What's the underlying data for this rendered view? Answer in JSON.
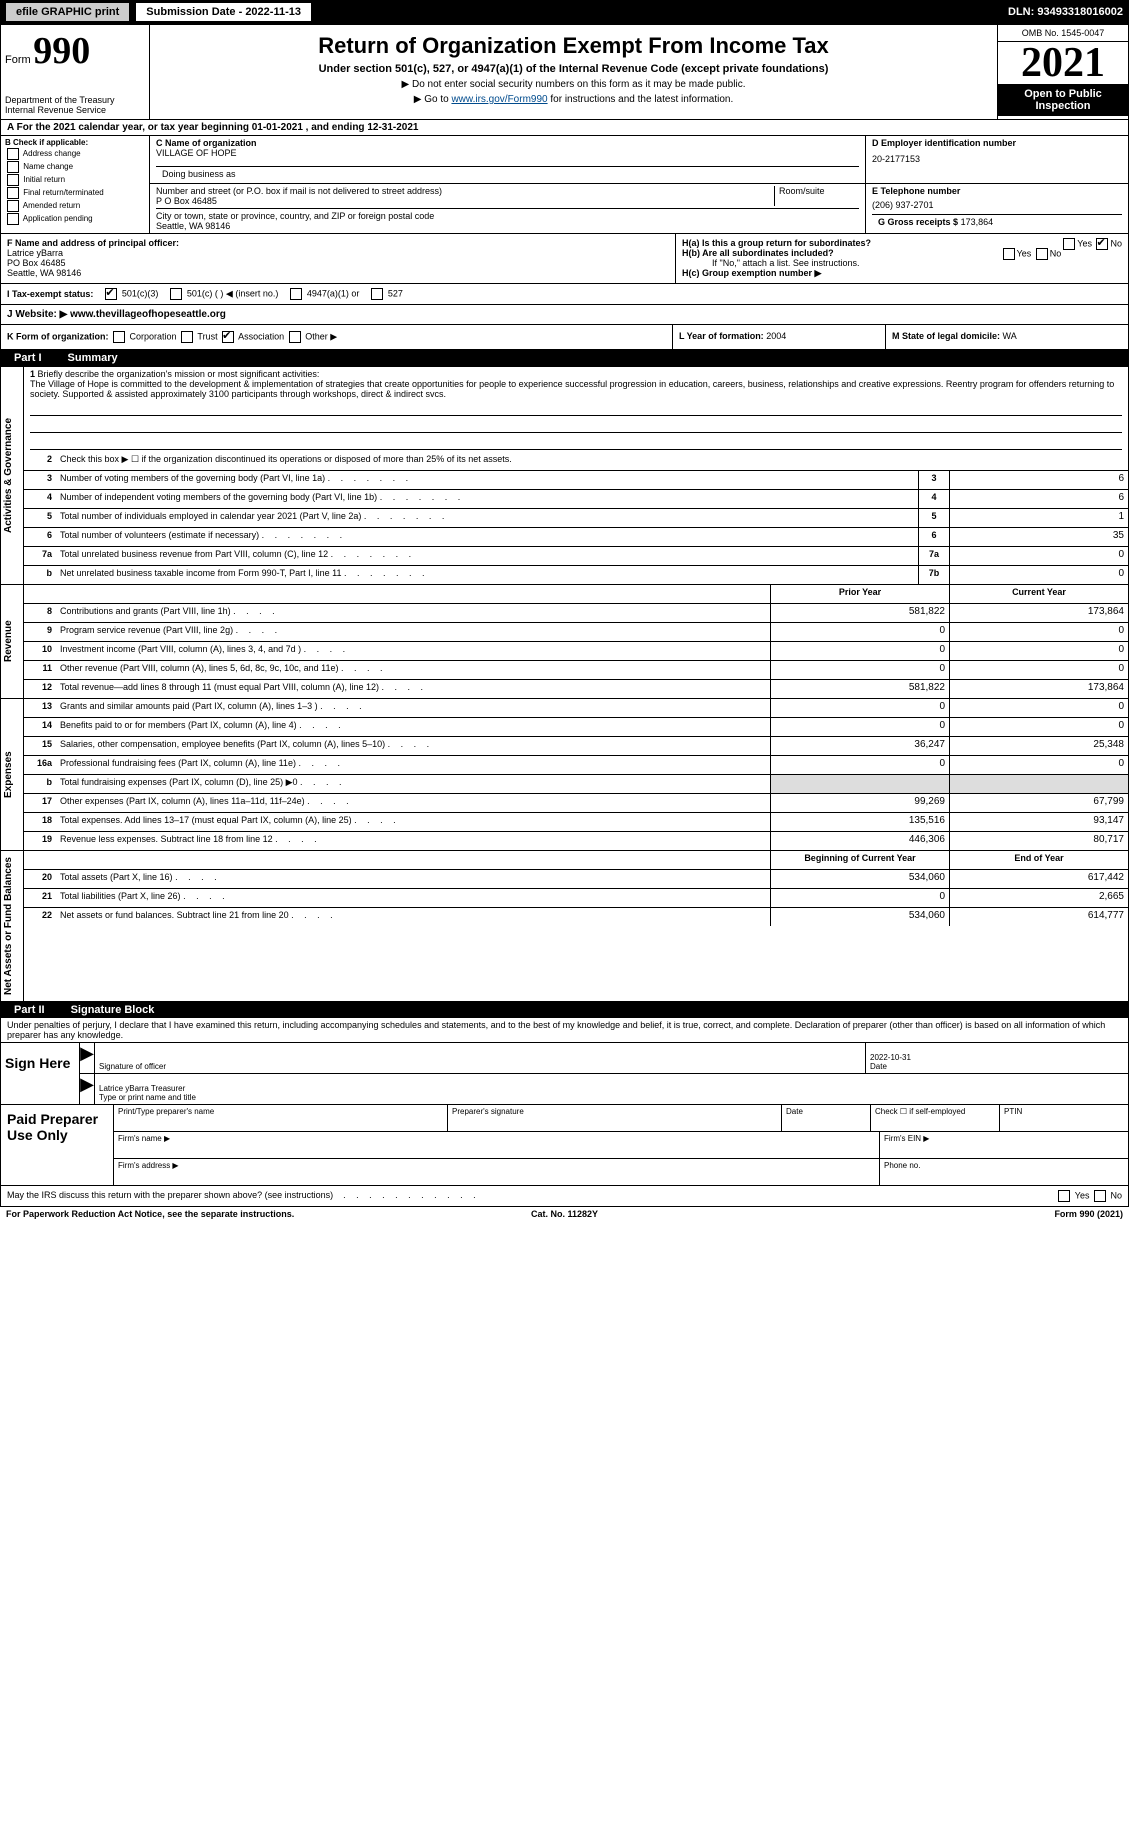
{
  "topbar": {
    "efile": "efile GRAPHIC print",
    "submission": "Submission Date - 2022-11-13",
    "dln": "DLN: 93493318016002"
  },
  "header": {
    "form_label": "Form",
    "form_number": "990",
    "dept": "Department of the Treasury Internal Revenue Service",
    "title": "Return of Organization Exempt From Income Tax",
    "subtitle": "Under section 501(c), 527, or 4947(a)(1) of the Internal Revenue Code (except private foundations)",
    "note1": "▶ Do not enter social security numbers on this form as it may be made public.",
    "note2_pre": "▶ Go to ",
    "note2_link": "www.irs.gov/Form990",
    "note2_post": " for instructions and the latest information.",
    "omb": "OMB No. 1545-0047",
    "year": "2021",
    "open_public": "Open to Public Inspection"
  },
  "row_a": "A For the 2021 calendar year, or tax year beginning 01-01-2021   , and ending 12-31-2021",
  "check_b": {
    "label": "B Check if applicable:",
    "items": [
      "Address change",
      "Name change",
      "Initial return",
      "Final return/terminated",
      "Amended return",
      "Application pending"
    ]
  },
  "org": {
    "name_label": "C Name of organization",
    "name": "VILLAGE OF HOPE",
    "dba_label": "Doing business as",
    "dba": "",
    "addr_label": "Number and street (or P.O. box if mail is not delivered to street address)",
    "room_label": "Room/suite",
    "addr": "P O Box 46485",
    "city_label": "City or town, state or province, country, and ZIP or foreign postal code",
    "city": "Seattle, WA  98146"
  },
  "ein": {
    "label": "D Employer identification number",
    "value": "20-2177153"
  },
  "phone": {
    "label": "E Telephone number",
    "value": "(206) 937-2701"
  },
  "gross": {
    "label": "G Gross receipts $",
    "value": "173,864"
  },
  "officer": {
    "label_f": "F  Name and address of principal officer:",
    "name": "Latrice yBarra",
    "addr1": "PO Box 46485",
    "addr2": "Seattle, WA  98146"
  },
  "group": {
    "ha": "H(a)  Is this a group return for subordinates?",
    "ha_yes": "Yes",
    "ha_no": "No",
    "hb": "H(b)  Are all subordinates included?",
    "hb_yes": "Yes",
    "hb_no": "No",
    "hb_note": "If \"No,\" attach a list. See instructions.",
    "hc": "H(c)  Group exemption number ▶"
  },
  "tax_status": {
    "label": "I   Tax-exempt status:",
    "opt1": "501(c)(3)",
    "opt2": "501(c) (  ) ◀ (insert no.)",
    "opt3": "4947(a)(1) or",
    "opt4": "527"
  },
  "website": {
    "label": "J   Website: ▶",
    "value": "www.thevillageofhopeseattle.org"
  },
  "form_org": {
    "label_k": "K Form of organization:",
    "corp": "Corporation",
    "trust": "Trust",
    "assoc": "Association",
    "other": "Other ▶",
    "label_l": "L Year of formation:",
    "year": "2004",
    "label_m": "M State of legal domicile:",
    "state": "WA"
  },
  "part1": {
    "label": "Part I",
    "title": "Summary"
  },
  "mission": {
    "num": "1",
    "label": "Briefly describe the organization's mission or most significant activities:",
    "text": "The Village of Hope is committed to the development & implementation of strategies that create opportunities for people to experience successful progression in education, careers, business, relationships and creative expressions. Reentry program for offenders returning to society. Supported & assisted approximately 3100 participants through workshops, direct & indirect svcs."
  },
  "line2": {
    "num": "2",
    "text": "Check this box ▶ ☐  if the organization discontinued its operations or disposed of more than 25% of its net assets."
  },
  "gov_lines": [
    {
      "num": "3",
      "text": "Number of voting members of the governing body (Part VI, line 1a)",
      "box": "3",
      "val": "6"
    },
    {
      "num": "4",
      "text": "Number of independent voting members of the governing body (Part VI, line 1b)",
      "box": "4",
      "val": "6"
    },
    {
      "num": "5",
      "text": "Total number of individuals employed in calendar year 2021 (Part V, line 2a)",
      "box": "5",
      "val": "1"
    },
    {
      "num": "6",
      "text": "Total number of volunteers (estimate if necessary)",
      "box": "6",
      "val": "35"
    },
    {
      "num": "7a",
      "text": "Total unrelated business revenue from Part VIII, column (C), line 12",
      "box": "7a",
      "val": "0"
    },
    {
      "num": "b",
      "text": "Net unrelated business taxable income from Form 990-T, Part I, line 11",
      "box": "7b",
      "val": "0"
    }
  ],
  "col_headers": {
    "prior": "Prior Year",
    "current": "Current Year"
  },
  "rev_lines": [
    {
      "num": "8",
      "text": "Contributions and grants (Part VIII, line 1h)",
      "prior": "581,822",
      "current": "173,864"
    },
    {
      "num": "9",
      "text": "Program service revenue (Part VIII, line 2g)",
      "prior": "0",
      "current": "0"
    },
    {
      "num": "10",
      "text": "Investment income (Part VIII, column (A), lines 3, 4, and 7d )",
      "prior": "0",
      "current": "0"
    },
    {
      "num": "11",
      "text": "Other revenue (Part VIII, column (A), lines 5, 6d, 8c, 9c, 10c, and 11e)",
      "prior": "0",
      "current": "0"
    },
    {
      "num": "12",
      "text": "Total revenue—add lines 8 through 11 (must equal Part VIII, column (A), line 12)",
      "prior": "581,822",
      "current": "173,864"
    }
  ],
  "exp_lines": [
    {
      "num": "13",
      "text": "Grants and similar amounts paid (Part IX, column (A), lines 1–3 )",
      "prior": "0",
      "current": "0"
    },
    {
      "num": "14",
      "text": "Benefits paid to or for members (Part IX, column (A), line 4)",
      "prior": "0",
      "current": "0"
    },
    {
      "num": "15",
      "text": "Salaries, other compensation, employee benefits (Part IX, column (A), lines 5–10)",
      "prior": "36,247",
      "current": "25,348"
    },
    {
      "num": "16a",
      "text": "Professional fundraising fees (Part IX, column (A), line 11e)",
      "prior": "0",
      "current": "0"
    },
    {
      "num": "b",
      "text": "Total fundraising expenses (Part IX, column (D), line 25) ▶0",
      "prior": "",
      "current": "",
      "shaded": true
    },
    {
      "num": "17",
      "text": "Other expenses (Part IX, column (A), lines 11a–11d, 11f–24e)",
      "prior": "99,269",
      "current": "67,799"
    },
    {
      "num": "18",
      "text": "Total expenses. Add lines 13–17 (must equal Part IX, column (A), line 25)",
      "prior": "135,516",
      "current": "93,147"
    },
    {
      "num": "19",
      "text": "Revenue less expenses. Subtract line 18 from line 12",
      "prior": "446,306",
      "current": "80,717"
    }
  ],
  "bal_headers": {
    "begin": "Beginning of Current Year",
    "end": "End of Year"
  },
  "bal_lines": [
    {
      "num": "20",
      "text": "Total assets (Part X, line 16)",
      "prior": "534,060",
      "current": "617,442"
    },
    {
      "num": "21",
      "text": "Total liabilities (Part X, line 26)",
      "prior": "0",
      "current": "2,665"
    },
    {
      "num": "22",
      "text": "Net assets or fund balances. Subtract line 21 from line 20",
      "prior": "534,060",
      "current": "614,777"
    }
  ],
  "part2": {
    "label": "Part II",
    "title": "Signature Block"
  },
  "penalties": "Under penalties of perjury, I declare that I have examined this return, including accompanying schedules and statements, and to the best of my knowledge and belief, it is true, correct, and complete. Declaration of preparer (other than officer) is based on all information of which preparer has any knowledge.",
  "sign": {
    "here": "Sign Here",
    "sig_label": "Signature of officer",
    "date_label": "Date",
    "date": "2022-10-31",
    "name": "Latrice yBarra Treasurer",
    "name_label": "Type or print name and title"
  },
  "paid": {
    "label": "Paid Preparer Use Only",
    "prep_name": "Print/Type preparer's name",
    "prep_sig": "Preparer's signature",
    "prep_date": "Date",
    "check_self": "Check ☐ if self-employed",
    "ptin": "PTIN",
    "firm_name": "Firm's name  ▶",
    "firm_ein": "Firm's EIN ▶",
    "firm_addr": "Firm's address ▶",
    "phone": "Phone no."
  },
  "discuss": {
    "text": "May the IRS discuss this return with the preparer shown above? (see instructions)",
    "yes": "Yes",
    "no": "No"
  },
  "footer": {
    "left": "For Paperwork Reduction Act Notice, see the separate instructions.",
    "center": "Cat. No. 11282Y",
    "right": "Form 990 (2021)"
  },
  "vert_labels": {
    "gov": "Activities & Governance",
    "rev": "Revenue",
    "exp": "Expenses",
    "bal": "Net Assets or Fund Balances"
  }
}
